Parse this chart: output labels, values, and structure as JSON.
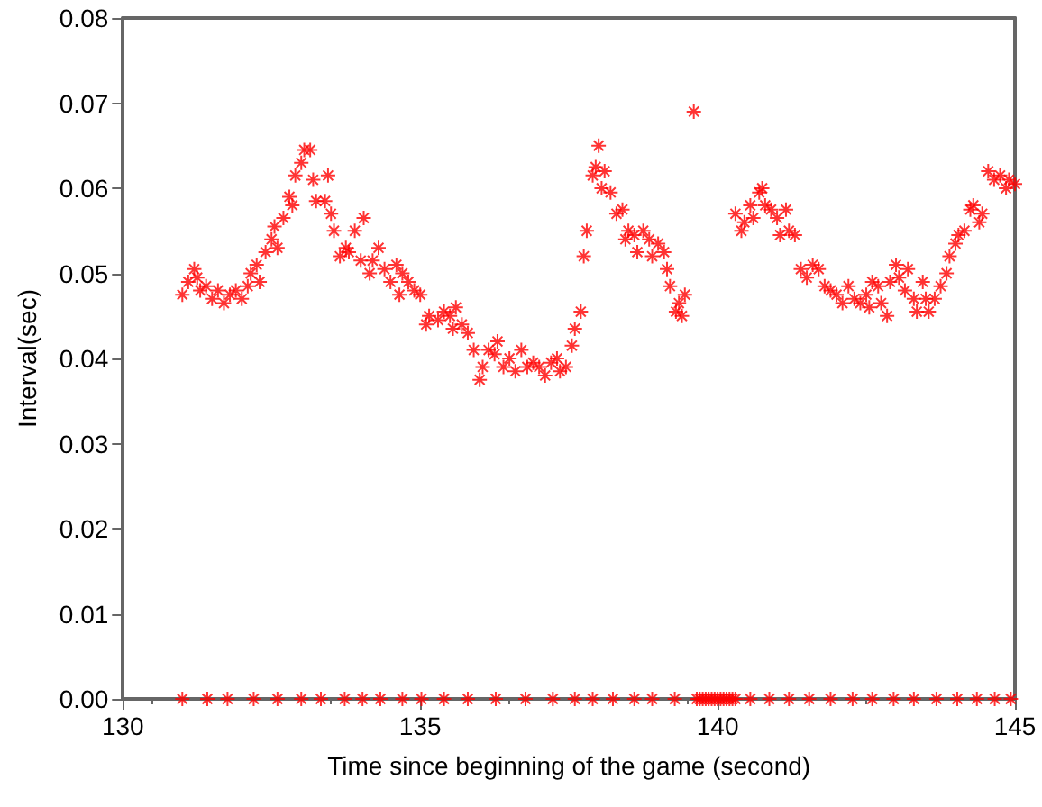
{
  "chart_data": {
    "type": "scatter",
    "xlabel": "Time since beginning of the game (second)",
    "ylabel": "Interval(sec)",
    "xlim": [
      130,
      145
    ],
    "xticks": [
      130,
      135,
      140,
      145
    ],
    "ylim": [
      0,
      0.08
    ],
    "yticks": [
      {
        "value": 0,
        "label": "0.00"
      },
      {
        "value": 0.01,
        "label": "0.01"
      },
      {
        "value": 0.02,
        "label": "0.02"
      },
      {
        "value": 0.03,
        "label": "0.03"
      },
      {
        "value": 0.04,
        "label": "0.04"
      },
      {
        "value": 0.05,
        "label": "0.05"
      },
      {
        "value": 0.06,
        "label": "0.06"
      },
      {
        "value": 0.07,
        "label": "0.07"
      },
      {
        "value": 0.08,
        "label": "0.08"
      }
    ],
    "grid": false,
    "marker": "cross",
    "series": [
      {
        "color": "#ff0000",
        "x": [
          131.0,
          131.1,
          131.2,
          131.25,
          131.3,
          131.4,
          131.5,
          131.6,
          131.7,
          131.8,
          131.9,
          132.0,
          132.1,
          132.15,
          132.25,
          132.3,
          132.4,
          132.5,
          132.55,
          132.6,
          132.7,
          132.8,
          132.85,
          132.9,
          133.0,
          133.05,
          133.15,
          133.2,
          133.25,
          133.4,
          133.45,
          133.5,
          133.55,
          133.65,
          133.75,
          133.8,
          133.9,
          134.0,
          134.05,
          134.15,
          134.2,
          134.3,
          134.4,
          134.5,
          134.6,
          134.65,
          134.7,
          134.8,
          134.9,
          135.0,
          135.1,
          135.15,
          135.3,
          135.4,
          135.5,
          135.55,
          135.6,
          135.7,
          135.8,
          135.9,
          136.0,
          136.05,
          136.15,
          136.25,
          136.3,
          136.4,
          136.5,
          136.6,
          136.7,
          136.8,
          136.9,
          137.0,
          137.1,
          137.2,
          137.3,
          137.35,
          137.45,
          137.55,
          137.6,
          137.7,
          137.75,
          137.8,
          137.9,
          137.95,
          138.0,
          138.05,
          138.1,
          138.2,
          138.3,
          138.4,
          138.45,
          138.5,
          138.6,
          138.65,
          138.75,
          138.85,
          138.9,
          139.0,
          139.1,
          139.15,
          139.2,
          139.3,
          139.35,
          139.4,
          139.45,
          139.6,
          140.3,
          140.4,
          140.45,
          140.55,
          140.6,
          140.7,
          140.75,
          140.8,
          140.9,
          141.0,
          141.05,
          141.15,
          141.2,
          141.3,
          141.4,
          141.5,
          141.6,
          141.7,
          141.8,
          141.9,
          142.0,
          142.1,
          142.2,
          142.3,
          142.4,
          142.5,
          142.55,
          142.6,
          142.7,
          142.75,
          142.85,
          142.9,
          143.0,
          143.05,
          143.15,
          143.2,
          143.3,
          143.35,
          143.45,
          143.5,
          143.55,
          143.65,
          143.75,
          143.85,
          143.9,
          144.0,
          144.05,
          144.15,
          144.25,
          144.3,
          144.4,
          144.45,
          144.55,
          144.65,
          144.75,
          144.85,
          144.9,
          145.0,
          131.0,
          131.42,
          131.76,
          132.2,
          132.6,
          133.0,
          133.33,
          133.73,
          134.03,
          134.33,
          134.7,
          135.02,
          135.4,
          135.8,
          136.27,
          136.77,
          137.23,
          137.6,
          137.9,
          138.24,
          138.6,
          138.9,
          139.28,
          139.65,
          139.7,
          139.75,
          139.8,
          139.85,
          139.9,
          139.95,
          140.0,
          140.05,
          140.1,
          140.15,
          140.2,
          140.25,
          140.3,
          140.55,
          140.87,
          141.2,
          141.54,
          141.9,
          142.27,
          142.6,
          142.96,
          143.3,
          143.68,
          144.03,
          144.36,
          144.66,
          144.93
        ],
        "values": [
          0.0475,
          0.049,
          0.0505,
          0.0495,
          0.048,
          0.0485,
          0.047,
          0.048,
          0.0465,
          0.0475,
          0.048,
          0.047,
          0.0485,
          0.05,
          0.051,
          0.049,
          0.0525,
          0.054,
          0.0555,
          0.053,
          0.0565,
          0.059,
          0.058,
          0.0615,
          0.063,
          0.0645,
          0.0645,
          0.061,
          0.0585,
          0.0585,
          0.0615,
          0.057,
          0.055,
          0.052,
          0.053,
          0.0525,
          0.055,
          0.0515,
          0.0565,
          0.05,
          0.0515,
          0.053,
          0.0505,
          0.049,
          0.051,
          0.0475,
          0.05,
          0.049,
          0.048,
          0.0475,
          0.044,
          0.045,
          0.0445,
          0.0455,
          0.045,
          0.0435,
          0.046,
          0.044,
          0.043,
          0.041,
          0.0375,
          0.039,
          0.041,
          0.0405,
          0.042,
          0.039,
          0.04,
          0.0385,
          0.041,
          0.039,
          0.0395,
          0.039,
          0.038,
          0.0395,
          0.04,
          0.0385,
          0.039,
          0.0415,
          0.0435,
          0.0455,
          0.052,
          0.055,
          0.0615,
          0.0625,
          0.065,
          0.06,
          0.062,
          0.0595,
          0.057,
          0.0575,
          0.054,
          0.055,
          0.0545,
          0.0525,
          0.055,
          0.054,
          0.052,
          0.0535,
          0.0525,
          0.0505,
          0.0485,
          0.0455,
          0.0465,
          0.045,
          0.0475,
          0.069,
          0.057,
          0.055,
          0.056,
          0.058,
          0.0565,
          0.0595,
          0.06,
          0.058,
          0.0575,
          0.0565,
          0.0545,
          0.0575,
          0.055,
          0.0545,
          0.0505,
          0.0495,
          0.051,
          0.0505,
          0.0485,
          0.048,
          0.0475,
          0.0465,
          0.0485,
          0.047,
          0.0465,
          0.0475,
          0.046,
          0.049,
          0.0485,
          0.0465,
          0.045,
          0.049,
          0.051,
          0.0495,
          0.048,
          0.0505,
          0.047,
          0.0455,
          0.049,
          0.047,
          0.0455,
          0.047,
          0.0485,
          0.05,
          0.052,
          0.0535,
          0.0545,
          0.055,
          0.0575,
          0.058,
          0.056,
          0.057,
          0.062,
          0.061,
          0.0615,
          0.06,
          0.061,
          0.0605,
          0,
          0,
          0,
          0,
          0,
          0,
          0,
          0,
          0,
          0,
          0,
          0,
          0,
          0,
          0,
          0,
          0,
          0,
          0,
          0,
          0,
          0,
          0,
          0,
          0,
          0,
          0,
          0,
          0,
          0,
          0,
          0,
          0,
          0,
          0,
          0,
          0,
          0,
          0,
          0,
          0,
          0,
          0,
          0,
          0,
          0,
          0,
          0,
          0,
          0,
          0
        ]
      }
    ]
  }
}
